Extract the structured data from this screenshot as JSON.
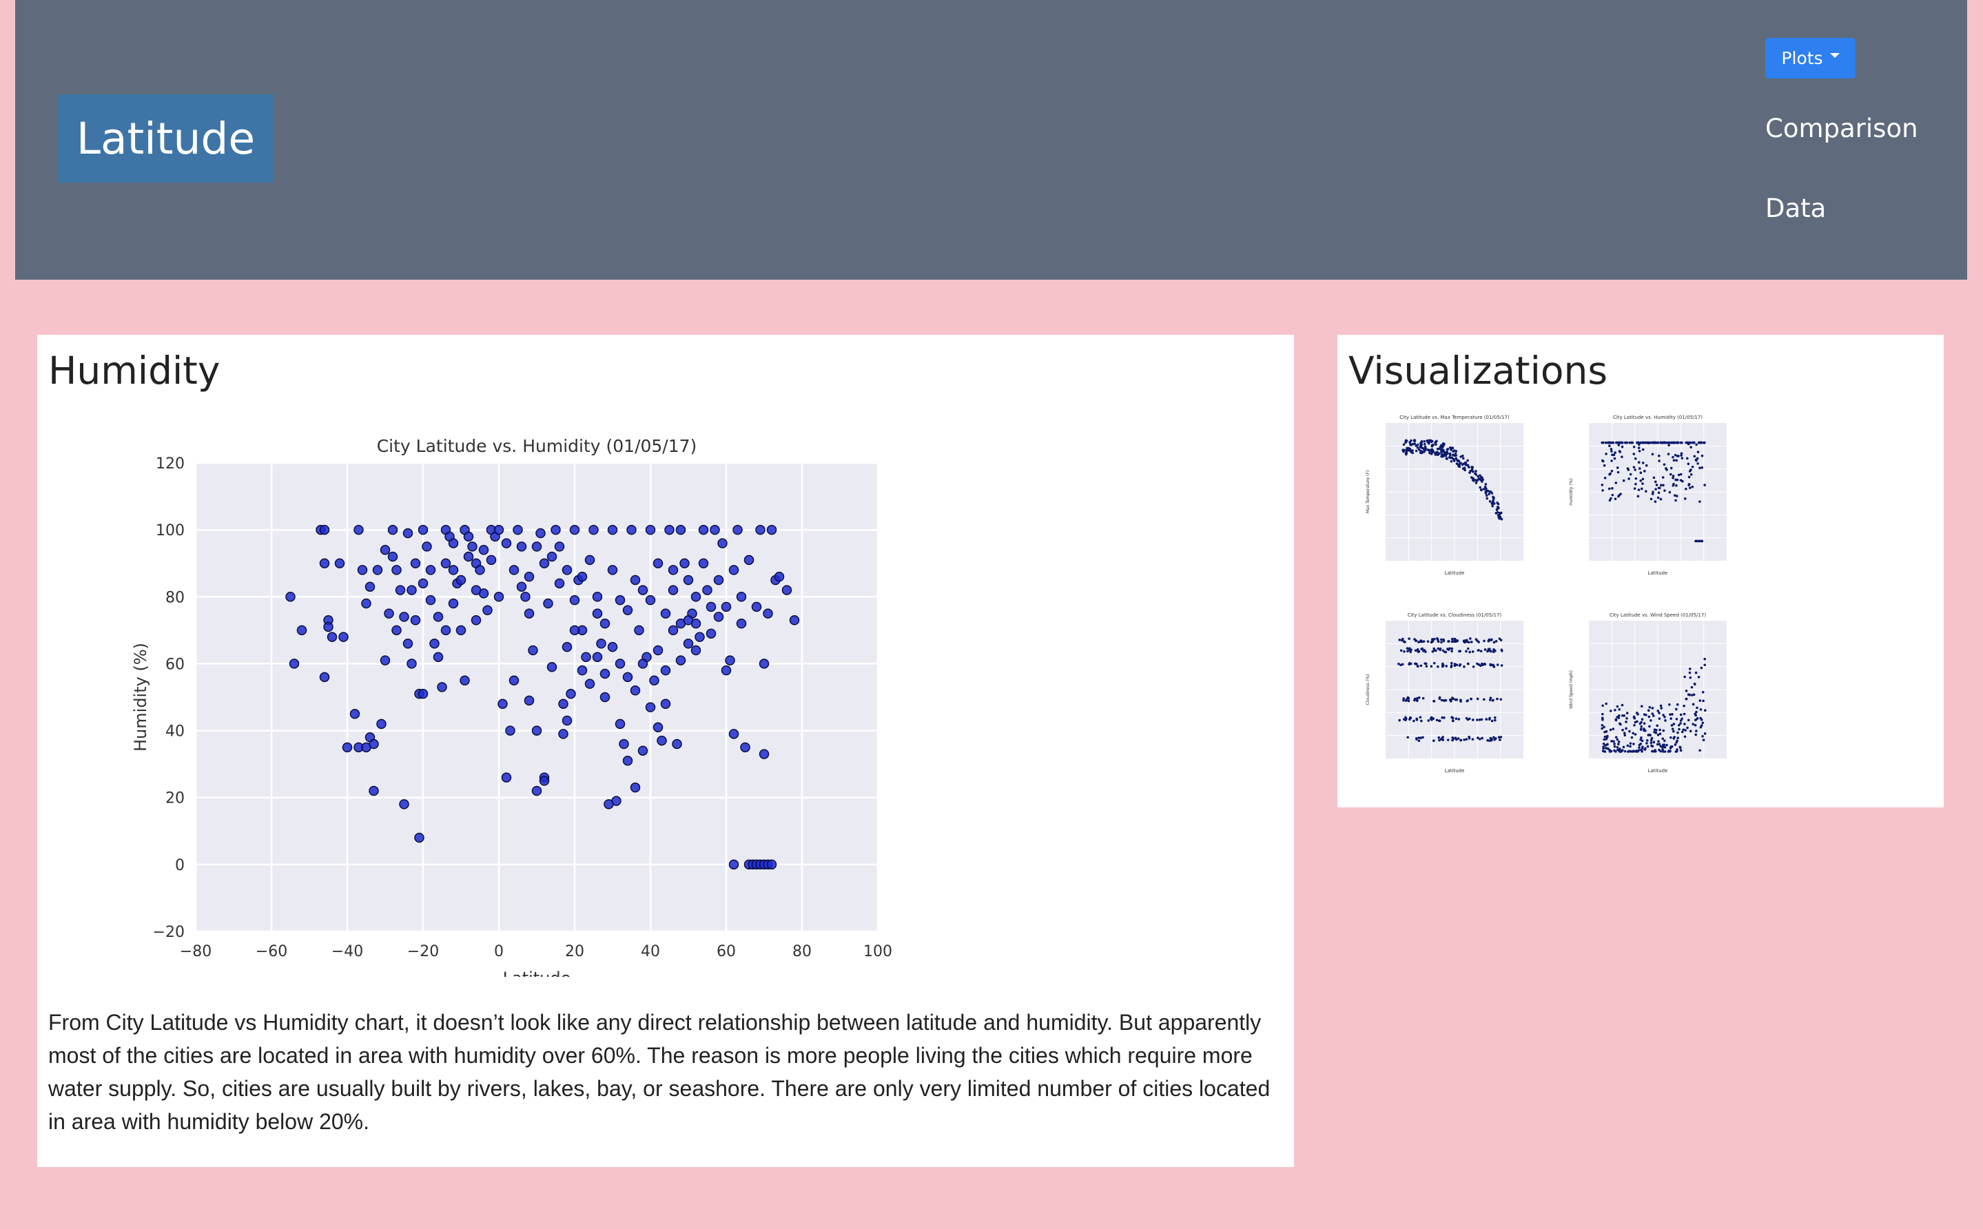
{
  "navbar": {
    "brand": "Latitude",
    "plots_label": "Plots",
    "links": [
      "Comparison",
      "Data"
    ]
  },
  "main": {
    "heading": "Humidity",
    "paragraph": "From City Latitude vs Humidity chart, it doesn’t look like any direct relationship between latitude and humidity. But apparently most of the cities are located in area with humidity over 60%. The reason is more people living the cities which require more water supply. So, cities are usually built by rivers, lakes, bay, or seashore. There are only very limited number of cities located in area with humidity below 20%."
  },
  "side": {
    "heading": "Visualizations",
    "thumbnails": [
      {
        "title": "City Latitude vs. Max Temperature (01/05/17)",
        "xlabel": "Latitude",
        "ylabel": "Max Temperature (F)"
      },
      {
        "title": "City Latitude vs. Humidity (01/05/17)",
        "xlabel": "Latitude",
        "ylabel": "Humidity (%)"
      },
      {
        "title": "City Latitude vs. Cloudiness (01/05/17)",
        "xlabel": "Latitude",
        "ylabel": "Cloudiness (%)"
      },
      {
        "title": "City Latitude vs. Wind Speed (01/05/17)",
        "xlabel": "Latitude",
        "ylabel": "Wind Speed (mph)"
      }
    ]
  },
  "colors": {
    "page_bg": "#f6c3cb",
    "navbar_bg": "#5f6b7c",
    "brand_bg": "#3e75a6",
    "button_bg": "#2e7ff0",
    "plot_bg": "#eaeaf2",
    "marker_fill": "#1f2bd0",
    "marker_edge": "#0a0f40"
  },
  "chart_data": {
    "type": "scatter",
    "title": "City Latitude vs. Humidity (01/05/17)",
    "xlabel": "Latitude",
    "ylabel": "Humidity (%)",
    "xlim": [
      -80,
      100
    ],
    "ylim": [
      -20,
      120
    ],
    "xticks": [
      -80,
      -60,
      -40,
      -20,
      0,
      20,
      40,
      60,
      80,
      100
    ],
    "yticks": [
      -20,
      0,
      20,
      40,
      60,
      80,
      100,
      120
    ],
    "tick_labels_x": [
      "−80",
      "−60",
      "−40",
      "−20",
      "0",
      "20",
      "40",
      "60",
      "80",
      "100"
    ],
    "tick_labels_y": [
      "−20",
      "0",
      "20",
      "40",
      "60",
      "80",
      "100",
      "120"
    ],
    "grid": true,
    "points": [
      [
        -55,
        80
      ],
      [
        -54,
        60
      ],
      [
        -52,
        70
      ],
      [
        -47,
        100
      ],
      [
        -46,
        100
      ],
      [
        -46,
        90
      ],
      [
        -45,
        73
      ],
      [
        -45,
        71
      ],
      [
        -44,
        68
      ],
      [
        -46,
        56
      ],
      [
        -42,
        90
      ],
      [
        -41,
        68
      ],
      [
        -40,
        35
      ],
      [
        -38,
        45
      ],
      [
        -37,
        35
      ],
      [
        -37,
        100
      ],
      [
        -36,
        88
      ],
      [
        -35,
        78
      ],
      [
        -35,
        35
      ],
      [
        -34,
        38
      ],
      [
        -33,
        36
      ],
      [
        -33,
        22
      ],
      [
        -34,
        83
      ],
      [
        -32,
        88
      ],
      [
        -31,
        42
      ],
      [
        -30,
        94
      ],
      [
        -30,
        61
      ],
      [
        -28,
        100
      ],
      [
        -28,
        92
      ],
      [
        -27,
        88
      ],
      [
        -26,
        82
      ],
      [
        -25,
        74
      ],
      [
        -25,
        18
      ],
      [
        -24,
        99
      ],
      [
        -23,
        82
      ],
      [
        -22,
        90
      ],
      [
        -22,
        73
      ],
      [
        -21,
        51
      ],
      [
        -21,
        8
      ],
      [
        -20,
        51
      ],
      [
        -20,
        100
      ],
      [
        -19,
        95
      ],
      [
        -18,
        88
      ],
      [
        -17,
        66
      ],
      [
        -16,
        62
      ],
      [
        -15,
        53
      ],
      [
        -14,
        100
      ],
      [
        -13,
        98
      ],
      [
        -12,
        96
      ],
      [
        -11,
        84
      ],
      [
        -10,
        70
      ],
      [
        -9,
        55
      ],
      [
        -9,
        100
      ],
      [
        -8,
        98
      ],
      [
        -7,
        95
      ],
      [
        -6,
        90
      ],
      [
        -5,
        88
      ],
      [
        -4,
        81
      ],
      [
        -3,
        76
      ],
      [
        -2,
        100
      ],
      [
        -1,
        98
      ],
      [
        0,
        100
      ],
      [
        1,
        48
      ],
      [
        2,
        26
      ],
      [
        3,
        40
      ],
      [
        4,
        55
      ],
      [
        5,
        100
      ],
      [
        6,
        95
      ],
      [
        7,
        80
      ],
      [
        8,
        49
      ],
      [
        9,
        64
      ],
      [
        10,
        40
      ],
      [
        10,
        22
      ],
      [
        11,
        99
      ],
      [
        12,
        26
      ],
      [
        12,
        25
      ],
      [
        13,
        78
      ],
      [
        14,
        59
      ],
      [
        15,
        100
      ],
      [
        16,
        95
      ],
      [
        17,
        48
      ],
      [
        17,
        39
      ],
      [
        18,
        43
      ],
      [
        19,
        51
      ],
      [
        20,
        100
      ],
      [
        21,
        85
      ],
      [
        22,
        70
      ],
      [
        23,
        62
      ],
      [
        24,
        54
      ],
      [
        25,
        100
      ],
      [
        26,
        80
      ],
      [
        27,
        66
      ],
      [
        28,
        57
      ],
      [
        29,
        18
      ],
      [
        30,
        100
      ],
      [
        31,
        19
      ],
      [
        32,
        42
      ],
      [
        33,
        36
      ],
      [
        34,
        31
      ],
      [
        35,
        100
      ],
      [
        36,
        23
      ],
      [
        37,
        70
      ],
      [
        38,
        34
      ],
      [
        39,
        62
      ],
      [
        40,
        100
      ],
      [
        41,
        55
      ],
      [
        42,
        41
      ],
      [
        43,
        37
      ],
      [
        44,
        48
      ],
      [
        45,
        100
      ],
      [
        46,
        82
      ],
      [
        47,
        36
      ],
      [
        48,
        100
      ],
      [
        49,
        90
      ],
      [
        50,
        66
      ],
      [
        51,
        75
      ],
      [
        52,
        72
      ],
      [
        53,
        68
      ],
      [
        54,
        100
      ],
      [
        55,
        82
      ],
      [
        56,
        77
      ],
      [
        57,
        100
      ],
      [
        58,
        74
      ],
      [
        59,
        96
      ],
      [
        60,
        58
      ],
      [
        61,
        61
      ],
      [
        62,
        39
      ],
      [
        62,
        0
      ],
      [
        63,
        100
      ],
      [
        64,
        80
      ],
      [
        65,
        35
      ],
      [
        66,
        0
      ],
      [
        67,
        0
      ],
      [
        68,
        0
      ],
      [
        69,
        0
      ],
      [
        70,
        0
      ],
      [
        71,
        0
      ],
      [
        72,
        0
      ],
      [
        69,
        100
      ],
      [
        70,
        60
      ],
      [
        70,
        33
      ],
      [
        71,
        75
      ],
      [
        72,
        100
      ],
      [
        73,
        85
      ],
      [
        74,
        86
      ],
      [
        76,
        82
      ],
      [
        78,
        73
      ],
      [
        -29,
        75
      ],
      [
        -27,
        70
      ],
      [
        -24,
        66
      ],
      [
        -23,
        60
      ],
      [
        -20,
        84
      ],
      [
        -18,
        79
      ],
      [
        -16,
        74
      ],
      [
        -14,
        90
      ],
      [
        -12,
        88
      ],
      [
        -10,
        85
      ],
      [
        -8,
        92
      ],
      [
        -6,
        82
      ],
      [
        -4,
        94
      ],
      [
        -2,
        91
      ],
      [
        2,
        96
      ],
      [
        4,
        88
      ],
      [
        6,
        83
      ],
      [
        8,
        86
      ],
      [
        10,
        95
      ],
      [
        12,
        90
      ],
      [
        14,
        92
      ],
      [
        16,
        84
      ],
      [
        18,
        88
      ],
      [
        20,
        79
      ],
      [
        22,
        86
      ],
      [
        24,
        91
      ],
      [
        26,
        75
      ],
      [
        28,
        72
      ],
      [
        30,
        88
      ],
      [
        32,
        79
      ],
      [
        34,
        76
      ],
      [
        36,
        85
      ],
      [
        38,
        82
      ],
      [
        40,
        79
      ],
      [
        42,
        90
      ],
      [
        44,
        75
      ],
      [
        46,
        88
      ],
      [
        48,
        72
      ],
      [
        50,
        85
      ],
      [
        52,
        80
      ],
      [
        54,
        90
      ],
      [
        56,
        69
      ],
      [
        58,
        85
      ],
      [
        60,
        77
      ],
      [
        62,
        88
      ],
      [
        64,
        72
      ],
      [
        66,
        91
      ],
      [
        68,
        77
      ],
      [
        30,
        65
      ],
      [
        32,
        60
      ],
      [
        34,
        56
      ],
      [
        36,
        52
      ],
      [
        38,
        60
      ],
      [
        40,
        47
      ],
      [
        42,
        64
      ],
      [
        44,
        58
      ],
      [
        46,
        70
      ],
      [
        48,
        61
      ],
      [
        50,
        73
      ],
      [
        52,
        64
      ],
      [
        20,
        70
      ],
      [
        18,
        65
      ],
      [
        22,
        58
      ],
      [
        26,
        62
      ],
      [
        28,
        50
      ],
      [
        -14,
        70
      ],
      [
        -12,
        78
      ],
      [
        -6,
        73
      ],
      [
        0,
        80
      ],
      [
        8,
        75
      ]
    ]
  }
}
